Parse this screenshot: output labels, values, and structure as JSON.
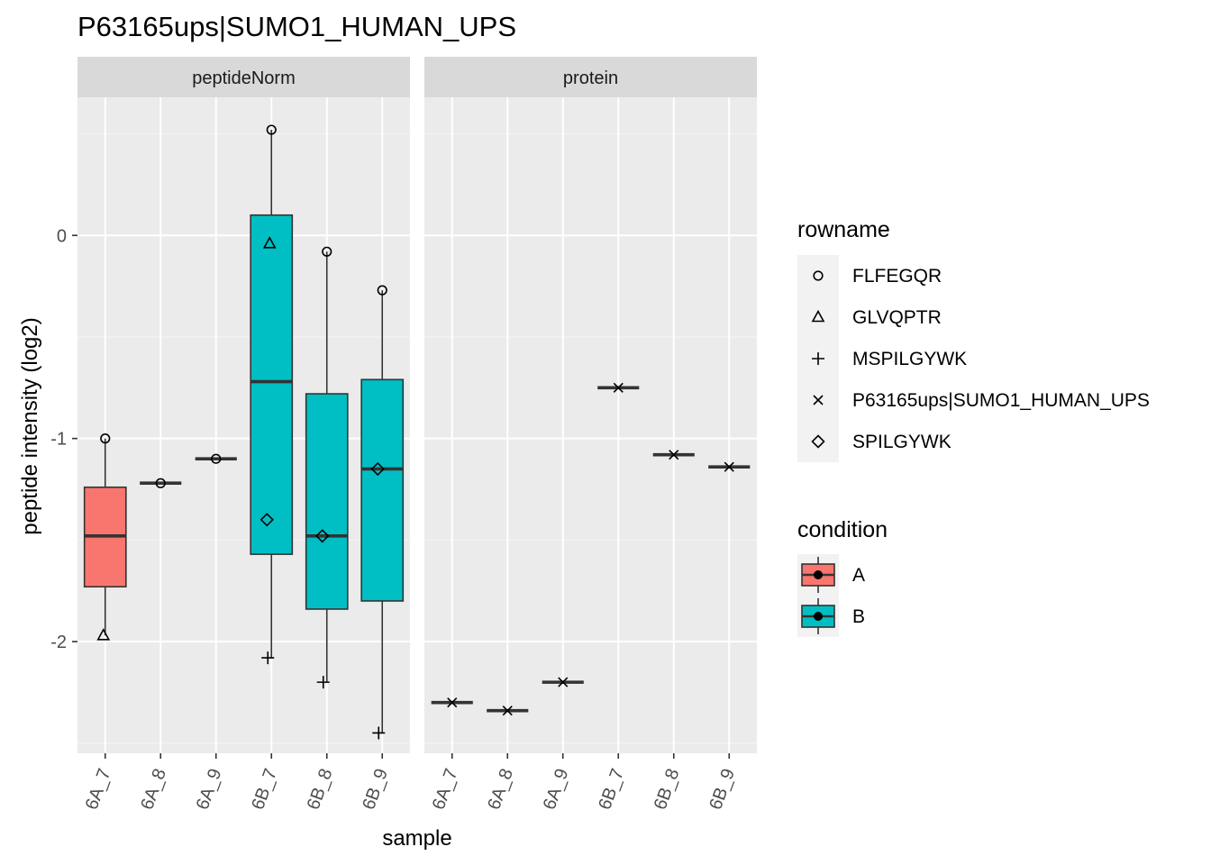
{
  "chart_data": {
    "type": "boxplot",
    "title": "P63165ups|SUMO1_HUMAN_UPS",
    "xlabel": "sample",
    "ylabel": "peptide intensity (log2)",
    "ylim": [
      -2.55,
      0.68
    ],
    "y_ticks": [
      0,
      -1,
      -2
    ],
    "y_tick_labels": [
      "0",
      "-1",
      "-2"
    ],
    "grid": true,
    "legend_position": "right",
    "condition_colors": {
      "A": "#F8766D",
      "B": "#00BFC4"
    },
    "legend": {
      "rowname_title": "rowname",
      "rowname_items": [
        {
          "label": "FLFEGQR",
          "shape": "circle"
        },
        {
          "label": "GLVQPTR",
          "shape": "triangle"
        },
        {
          "label": "MSPILGYWK",
          "shape": "plus"
        },
        {
          "label": "P63165ups|SUMO1_HUMAN_UPS",
          "shape": "cross"
        },
        {
          "label": "SPILGYWK",
          "shape": "diamond"
        }
      ],
      "condition_title": "condition",
      "condition_items": [
        {
          "label": "A",
          "color": "#F8766D"
        },
        {
          "label": "B",
          "color": "#00BFC4"
        }
      ]
    },
    "panels": [
      {
        "name": "peptideNorm",
        "categories": [
          "6A_7",
          "6A_8",
          "6A_9",
          "6B_7",
          "6B_8",
          "6B_9"
        ],
        "boxes": [
          {
            "sample": "6A_7",
            "condition": "A",
            "min": -1.97,
            "q1": -1.73,
            "median": -1.48,
            "q3": -1.24,
            "max": -1.0
          },
          {
            "sample": "6A_8",
            "condition": "A",
            "min": -1.22,
            "q1": -1.22,
            "median": -1.22,
            "q3": -1.22,
            "max": -1.22
          },
          {
            "sample": "6A_9",
            "condition": "A",
            "min": -1.1,
            "q1": -1.1,
            "median": -1.1,
            "q3": -1.1,
            "max": -1.1
          },
          {
            "sample": "6B_7",
            "condition": "B",
            "min": -2.08,
            "q1": -1.57,
            "median": -0.72,
            "q3": 0.1,
            "max": 0.52
          },
          {
            "sample": "6B_8",
            "condition": "B",
            "min": -2.2,
            "q1": -1.84,
            "median": -1.48,
            "q3": -0.78,
            "max": -0.08
          },
          {
            "sample": "6B_9",
            "condition": "B",
            "min": -2.45,
            "q1": -1.8,
            "median": -1.15,
            "q3": -0.71,
            "max": -0.27
          }
        ],
        "points": [
          {
            "sample": "6A_7",
            "rowname": "FLFEGQR",
            "value": -1.0
          },
          {
            "sample": "6A_7",
            "rowname": "GLVQPTR",
            "value": -1.97
          },
          {
            "sample": "6A_8",
            "rowname": "FLFEGQR",
            "value": -1.22
          },
          {
            "sample": "6A_9",
            "rowname": "FLFEGQR",
            "value": -1.1
          },
          {
            "sample": "6B_7",
            "rowname": "FLFEGQR",
            "value": 0.52
          },
          {
            "sample": "6B_7",
            "rowname": "GLVQPTR",
            "value": -0.04
          },
          {
            "sample": "6B_7",
            "rowname": "SPILGYWK",
            "value": -1.4
          },
          {
            "sample": "6B_7",
            "rowname": "MSPILGYWK",
            "value": -2.08
          },
          {
            "sample": "6B_8",
            "rowname": "FLFEGQR",
            "value": -0.08
          },
          {
            "sample": "6B_8",
            "rowname": "SPILGYWK",
            "value": -1.48
          },
          {
            "sample": "6B_8",
            "rowname": "MSPILGYWK",
            "value": -2.2
          },
          {
            "sample": "6B_9",
            "rowname": "FLFEGQR",
            "value": -0.27
          },
          {
            "sample": "6B_9",
            "rowname": "SPILGYWK",
            "value": -1.15
          },
          {
            "sample": "6B_9",
            "rowname": "MSPILGYWK",
            "value": -2.45
          }
        ]
      },
      {
        "name": "protein",
        "categories": [
          "6A_7",
          "6A_8",
          "6A_9",
          "6B_7",
          "6B_8",
          "6B_9"
        ],
        "boxes": [
          {
            "sample": "6A_7",
            "condition": "A",
            "min": -2.3,
            "q1": -2.3,
            "median": -2.3,
            "q3": -2.3,
            "max": -2.3
          },
          {
            "sample": "6A_8",
            "condition": "A",
            "min": -2.34,
            "q1": -2.34,
            "median": -2.34,
            "q3": -2.34,
            "max": -2.34
          },
          {
            "sample": "6A_9",
            "condition": "A",
            "min": -2.2,
            "q1": -2.2,
            "median": -2.2,
            "q3": -2.2,
            "max": -2.2
          },
          {
            "sample": "6B_7",
            "condition": "B",
            "min": -0.75,
            "q1": -0.75,
            "median": -0.75,
            "q3": -0.75,
            "max": -0.75
          },
          {
            "sample": "6B_8",
            "condition": "B",
            "min": -1.08,
            "q1": -1.08,
            "median": -1.08,
            "q3": -1.08,
            "max": -1.08
          },
          {
            "sample": "6B_9",
            "condition": "B",
            "min": -1.14,
            "q1": -1.14,
            "median": -1.14,
            "q3": -1.14,
            "max": -1.14
          }
        ],
        "points": [
          {
            "sample": "6A_7",
            "rowname": "P63165ups|SUMO1_HUMAN_UPS",
            "value": -2.3
          },
          {
            "sample": "6A_8",
            "rowname": "P63165ups|SUMO1_HUMAN_UPS",
            "value": -2.34
          },
          {
            "sample": "6A_9",
            "rowname": "P63165ups|SUMO1_HUMAN_UPS",
            "value": -2.2
          },
          {
            "sample": "6B_7",
            "rowname": "P63165ups|SUMO1_HUMAN_UPS",
            "value": -0.75
          },
          {
            "sample": "6B_8",
            "rowname": "P63165ups|SUMO1_HUMAN_UPS",
            "value": -1.08
          },
          {
            "sample": "6B_9",
            "rowname": "P63165ups|SUMO1_HUMAN_UPS",
            "value": -1.14
          }
        ]
      }
    ]
  }
}
